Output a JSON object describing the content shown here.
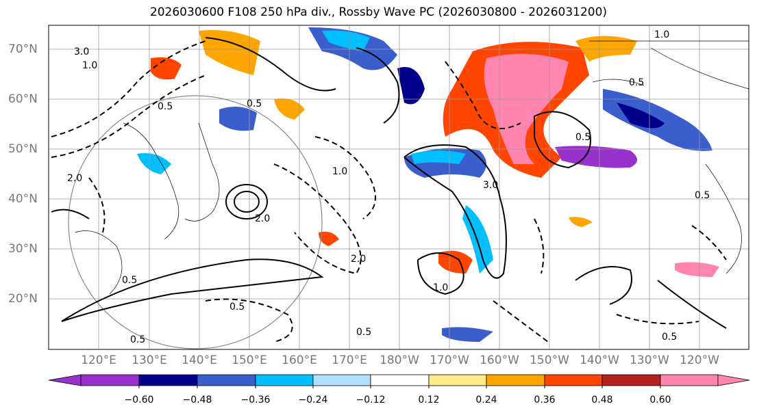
{
  "title": "2026030600 F108 250 hPa div., Rossby Wave PC (2026030800 - 2026031200)",
  "lat_labels": [
    "70°N",
    "60°N",
    "50°N",
    "40°N",
    "30°N",
    "20°N"
  ],
  "lon_labels": [
    "120°E",
    "130°E",
    "140°E",
    "150°E",
    "160°E",
    "170°E",
    "180°W",
    "170°W",
    "160°W",
    "150°W",
    "140°W",
    "130°W",
    "120°W"
  ],
  "colorbar": {
    "ticks": [
      "−0.60",
      "−0.48",
      "−0.36",
      "−0.24",
      "−0.12",
      "0.12",
      "0.24",
      "0.36",
      "0.48",
      "0.60"
    ],
    "colors": [
      "#9932CC",
      "#00008B",
      "#3A5FCD",
      "#00BFFF",
      "#B2DFFF",
      "#FFFFFF",
      "#FFEB8A",
      "#FFA500",
      "#FF4500",
      "#B22222",
      "#FF85B0"
    ]
  },
  "contour_labels": [
    "3.0",
    "1.0",
    "0.5",
    "2.0",
    "1.0",
    "0.5",
    "2.0",
    "0.5",
    "0.5",
    "0.5",
    "1.0",
    "3.0",
    "0.5",
    "0.5",
    "1.0",
    "0.5",
    "0.5",
    "2.0",
    "0.5"
  ]
}
